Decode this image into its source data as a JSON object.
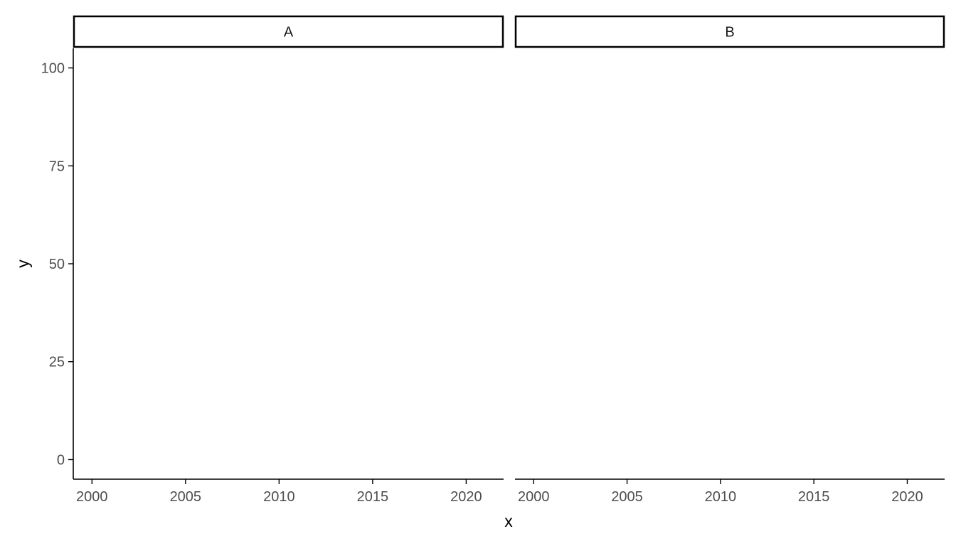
{
  "chart_data": {
    "type": "scatter",
    "title": "",
    "xlabel": "x",
    "ylabel": "y",
    "xlim": [
      1999,
      2022
    ],
    "ylim": [
      -5,
      105
    ],
    "x_ticks": [
      2000,
      2005,
      2010,
      2015,
      2020
    ],
    "y_ticks": [
      0,
      25,
      50,
      75,
      100
    ],
    "grid": false,
    "facets": [
      {
        "label": "A",
        "points": []
      },
      {
        "label": "B",
        "points": []
      }
    ],
    "colors": {
      "axis": "#000000",
      "tick_text": "#4d4d4d",
      "strip_border": "#000000",
      "background": "#ffffff"
    }
  }
}
